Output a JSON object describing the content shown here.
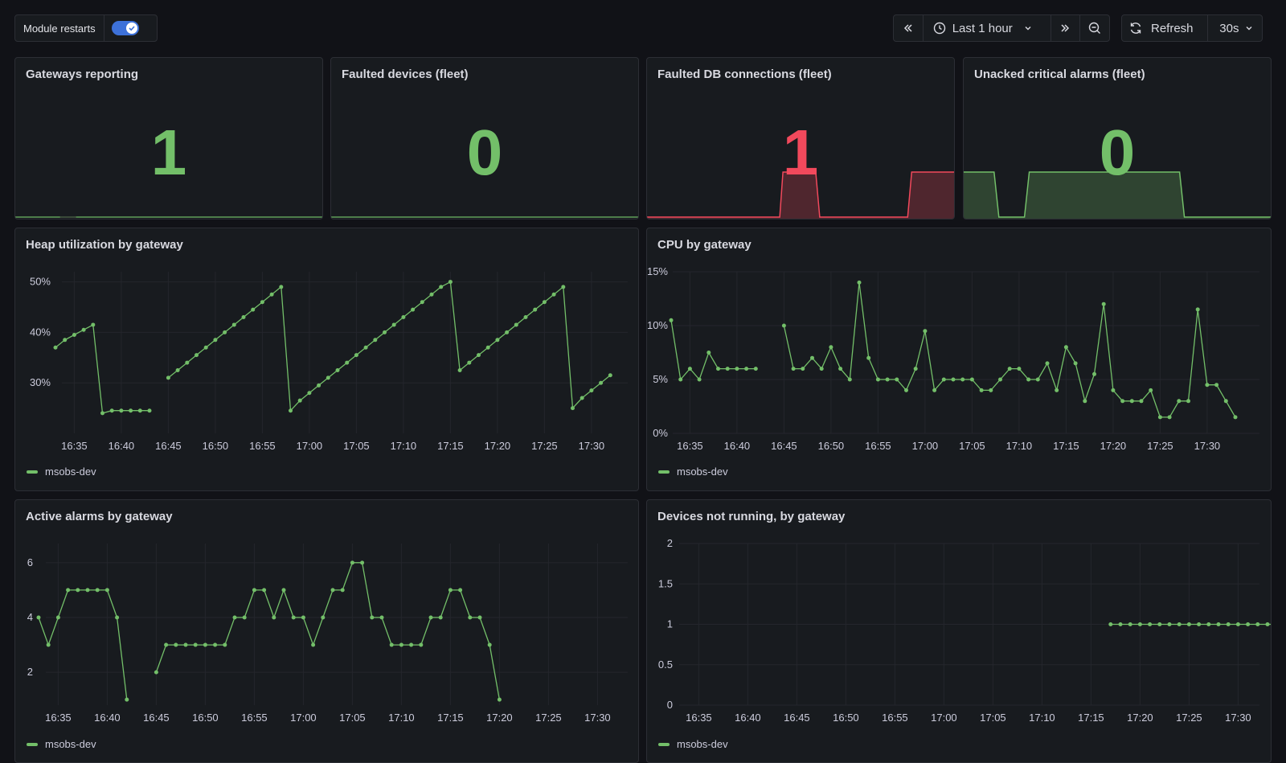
{
  "toolbar": {
    "module_restarts_label": "Module restarts",
    "module_restarts_enabled": true,
    "time_range_label": "Last 1 hour",
    "refresh_label": "Refresh",
    "refresh_interval": "30s"
  },
  "colors": {
    "green": "#73bf69",
    "red": "#f2495c",
    "panel_bg": "#181b1f",
    "border": "#2c2e35"
  },
  "stats": [
    {
      "title": "Gateways reporting",
      "value": "1",
      "color": "#73bf69"
    },
    {
      "title": "Faulted devices (fleet)",
      "value": "0",
      "color": "#73bf69"
    },
    {
      "title": "Faulted DB connections (fleet)",
      "value": "1",
      "color": "#f2495c"
    },
    {
      "title": "Unacked critical alarms (fleet)",
      "value": "0",
      "color": "#73bf69"
    }
  ],
  "chart_data": [
    {
      "type": "line",
      "title": "Heap utilization by gateway",
      "legend": [
        "msobs-dev"
      ],
      "x_ticks": [
        "16:35",
        "16:40",
        "16:45",
        "16:50",
        "16:55",
        "17:00",
        "17:05",
        "17:10",
        "17:15",
        "17:20",
        "17:25",
        "17:30"
      ],
      "y_ticks": [
        "30%",
        "40%",
        "50%"
      ],
      "ylim": [
        20,
        52
      ],
      "x_start": "16:33",
      "x_step_minutes": 1,
      "series": [
        {
          "name": "msobs-dev",
          "values": [
            37,
            38.5,
            39.5,
            40.5,
            41.5,
            24,
            24.5,
            24.5,
            24.5,
            24.5,
            24.5,
            null,
            31,
            32.5,
            34,
            35.5,
            37,
            38.5,
            40,
            41.5,
            43,
            44.5,
            46,
            47.5,
            49,
            24.5,
            26.5,
            28,
            29.5,
            31,
            32.5,
            34,
            35.5,
            37,
            38.5,
            40,
            41.5,
            43,
            44.5,
            46,
            47.5,
            49,
            50,
            32.5,
            34,
            35.5,
            37,
            38.5,
            40,
            41.5,
            43,
            44.5,
            46,
            47.5,
            49,
            25,
            27,
            28.5,
            30,
            31.5
          ]
        }
      ]
    },
    {
      "type": "line",
      "title": "CPU by gateway",
      "legend": [
        "msobs-dev"
      ],
      "x_ticks": [
        "16:35",
        "16:40",
        "16:45",
        "16:50",
        "16:55",
        "17:00",
        "17:05",
        "17:10",
        "17:15",
        "17:20",
        "17:25",
        "17:30"
      ],
      "y_ticks": [
        "0%",
        "5%",
        "10%",
        "15%"
      ],
      "ylim": [
        0,
        15
      ],
      "x_start": "16:33",
      "x_step_minutes": 1,
      "series": [
        {
          "name": "msobs-dev",
          "values": [
            10.5,
            5,
            6,
            5,
            7.5,
            6,
            6,
            6,
            6,
            6,
            null,
            null,
            10,
            6,
            6,
            7,
            6,
            8,
            6,
            5,
            14,
            7,
            5,
            5,
            5,
            4,
            6,
            9.5,
            4,
            5,
            5,
            5,
            5,
            4,
            4,
            5,
            6,
            6,
            5,
            5,
            6.5,
            4,
            8,
            6.5,
            3,
            5.5,
            12,
            4,
            3,
            3,
            3,
            4,
            1.5,
            1.5,
            3,
            3,
            11.5,
            4.5,
            4.5,
            3,
            1.5
          ]
        }
      ]
    },
    {
      "type": "line",
      "title": "Active alarms by gateway",
      "legend": [
        "msobs-dev"
      ],
      "x_ticks": [
        "16:35",
        "16:40",
        "16:45",
        "16:50",
        "16:55",
        "17:00",
        "17:05",
        "17:10",
        "17:15",
        "17:20",
        "17:25",
        "17:30"
      ],
      "y_ticks": [
        "2",
        "4",
        "6"
      ],
      "ylim": [
        0.8,
        6.7
      ],
      "x_start": "16:33",
      "x_step_minutes": 1,
      "series": [
        {
          "name": "msobs-dev",
          "values": [
            4,
            3,
            4,
            5,
            5,
            5,
            5,
            5,
            4,
            1,
            null,
            null,
            2,
            3,
            3,
            3,
            3,
            3,
            3,
            3,
            4,
            4,
            5,
            5,
            4,
            5,
            4,
            4,
            3,
            4,
            5,
            5,
            6,
            6,
            4,
            4,
            3,
            3,
            3,
            3,
            4,
            4,
            5,
            5,
            4,
            4,
            3,
            1
          ]
        }
      ]
    },
    {
      "type": "line",
      "title": "Devices not running, by gateway",
      "legend": [
        "msobs-dev"
      ],
      "x_ticks": [
        "16:35",
        "16:40",
        "16:45",
        "16:50",
        "16:55",
        "17:00",
        "17:05",
        "17:10",
        "17:15",
        "17:20",
        "17:25",
        "17:30"
      ],
      "y_ticks": [
        "0",
        "0.5",
        "1",
        "1.5",
        "2"
      ],
      "ylim": [
        0,
        2
      ],
      "x_start": "17:17",
      "x_step_minutes": 1,
      "series": [
        {
          "name": "msobs-dev",
          "values": [
            1,
            1,
            1,
            1,
            1,
            1,
            1,
            1,
            1,
            1,
            1,
            1,
            1,
            1,
            1,
            1,
            1,
            1
          ]
        }
      ]
    }
  ]
}
